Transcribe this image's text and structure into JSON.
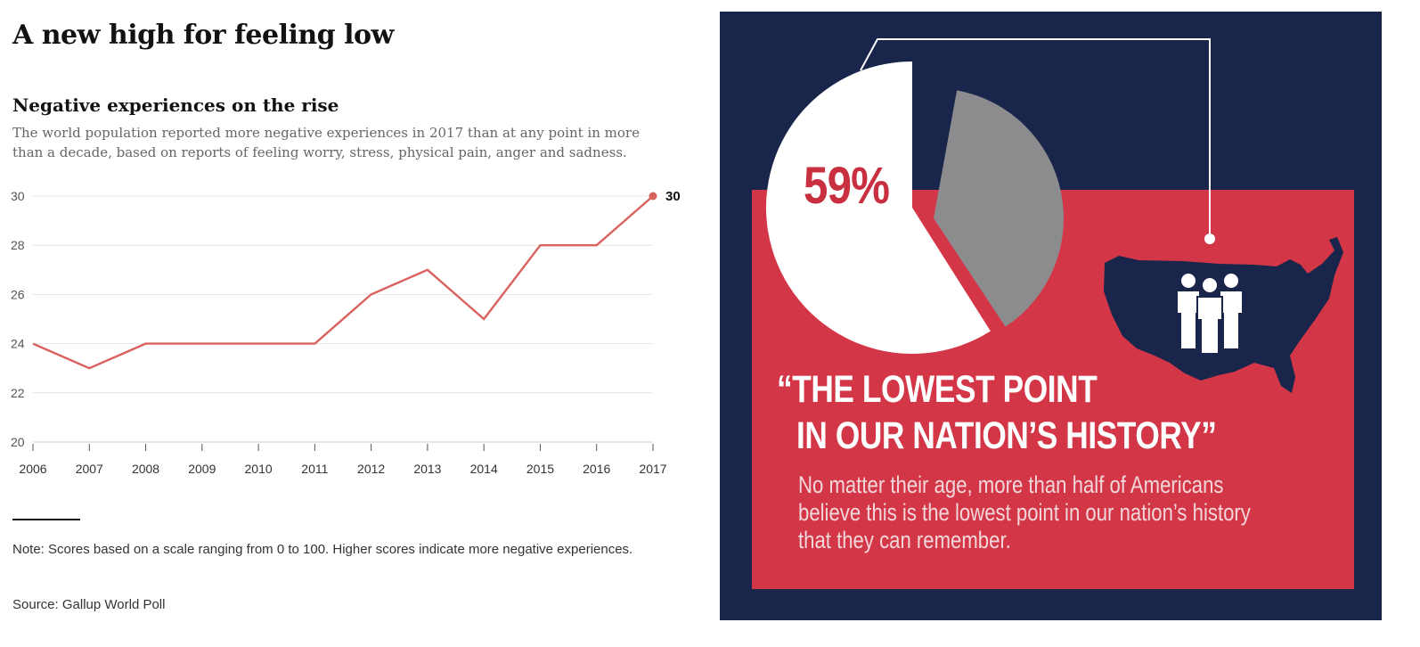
{
  "headline": "A new high for feeling low",
  "chart_data": {
    "type": "line",
    "title": "Negative experiences on the rise",
    "subtitle": "The world population reported more negative experiences in 2017 than at any point in more than a decade, based on reports of feeling worry, stress, physical pain, anger and sadness.",
    "x": [
      "2006",
      "2007",
      "2008",
      "2009",
      "2010",
      "2011",
      "2012",
      "2013",
      "2014",
      "2015",
      "2016",
      "2017"
    ],
    "series": [
      {
        "values": [
          24,
          23,
          24,
          24,
          24,
          24,
          26,
          27,
          25,
          28,
          28,
          30
        ]
      }
    ],
    "end_label": "30",
    "yticks": [
      "20",
      "22",
      "24",
      "26",
      "28",
      "30"
    ],
    "ylim": [
      20,
      30
    ],
    "xlabel": "",
    "ylabel": "",
    "grid": true,
    "line_color": "#d9625e"
  },
  "note": "Note: Scores based on a scale ranging from 0 to 100. Higher scores indicate more negative experiences.",
  "source": "Source: Gallup World Poll",
  "infographic": {
    "percent_label": "59%",
    "pie_value_percent": 59,
    "quote_line_1": "“THE LOWEST POINT",
    "quote_line_2": "IN OUR NATION’S HISTORY”",
    "body": "No matter their age, more than half of Americans believe this is the lowest point in our nation’s history that they can remember.",
    "icons": [
      "pie-chart-icon",
      "us-map-icon",
      "people-group-icon"
    ],
    "colors": {
      "navy": "#19254b",
      "red": "#d33747",
      "white": "#ffffff",
      "gray": "#8c8c8f"
    }
  }
}
